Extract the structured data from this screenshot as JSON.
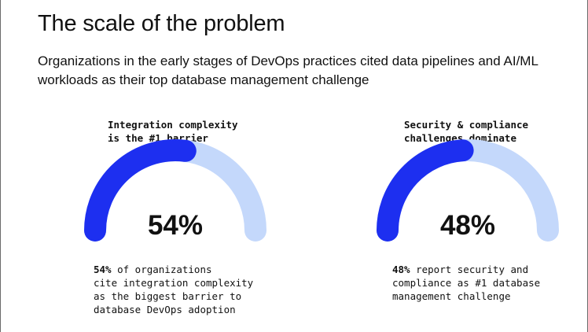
{
  "header": {
    "title": "The scale of the problem",
    "subtitle": "Organizations in the early stages of DevOps practices cited data pipelines and AI/ML workloads as their top database management challenge"
  },
  "colors": {
    "filled": "#1d2ff0",
    "track": "#c4d8fb",
    "text": "#111111"
  },
  "chart_data": [
    {
      "type": "gauge",
      "title": "Integration complexity\nis the #1 barrier",
      "value": 54,
      "max": 100,
      "value_label": "54%",
      "description_lead": "54%",
      "description_rest": " of organizations\ncite integration complexity\nas the biggest barrier to\ndatabase DevOps adoption"
    },
    {
      "type": "gauge",
      "title": "Security & compliance\nchallenges dominate",
      "value": 48,
      "max": 100,
      "value_label": "48%",
      "description_lead": "48%",
      "description_rest": " report security and\ncompliance as #1 database\nmanagement challenge"
    }
  ]
}
